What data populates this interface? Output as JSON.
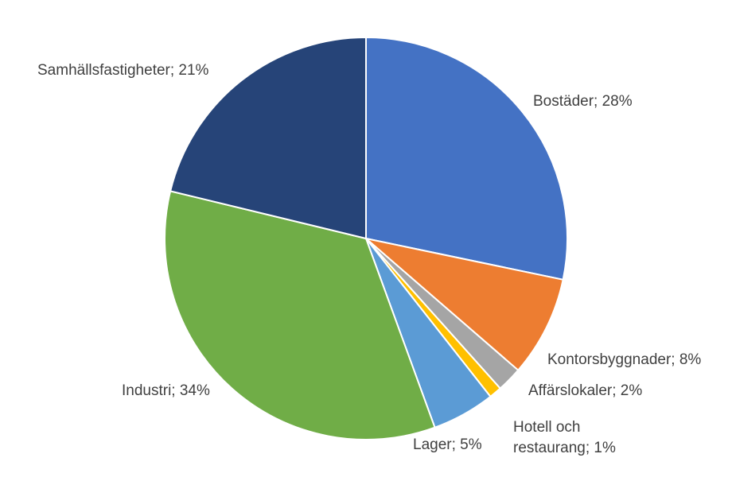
{
  "chart_data": {
    "type": "pie",
    "start_angle_deg": 0,
    "direction": "clockwise",
    "slices": [
      {
        "name": "Bostäder",
        "value": 28,
        "label": "Bostäder; 28%",
        "color": "#4472C4"
      },
      {
        "name": "Kontorsbyggnader",
        "value": 8,
        "label": "Kontorsbyggnader; 8%",
        "color": "#ED7D31"
      },
      {
        "name": "Affärslokaler",
        "value": 2,
        "label": "Affärslokaler; 2%",
        "color": "#A5A5A5"
      },
      {
        "name": "Hotell och restaurang",
        "value": 1,
        "label": [
          "Hotell och",
          "restaurang; 1%"
        ],
        "color": "#FFC000"
      },
      {
        "name": "Lager",
        "value": 5,
        "label": "Lager; 5%",
        "color": "#5B9BD5"
      },
      {
        "name": "Industri",
        "value": 34,
        "label": "Industri; 34%",
        "color": "#70AD47"
      },
      {
        "name": "Samhällsfastigheter",
        "value": 21,
        "label": "Samhällsfastigheter; 21%",
        "color": "#264478"
      }
    ]
  }
}
